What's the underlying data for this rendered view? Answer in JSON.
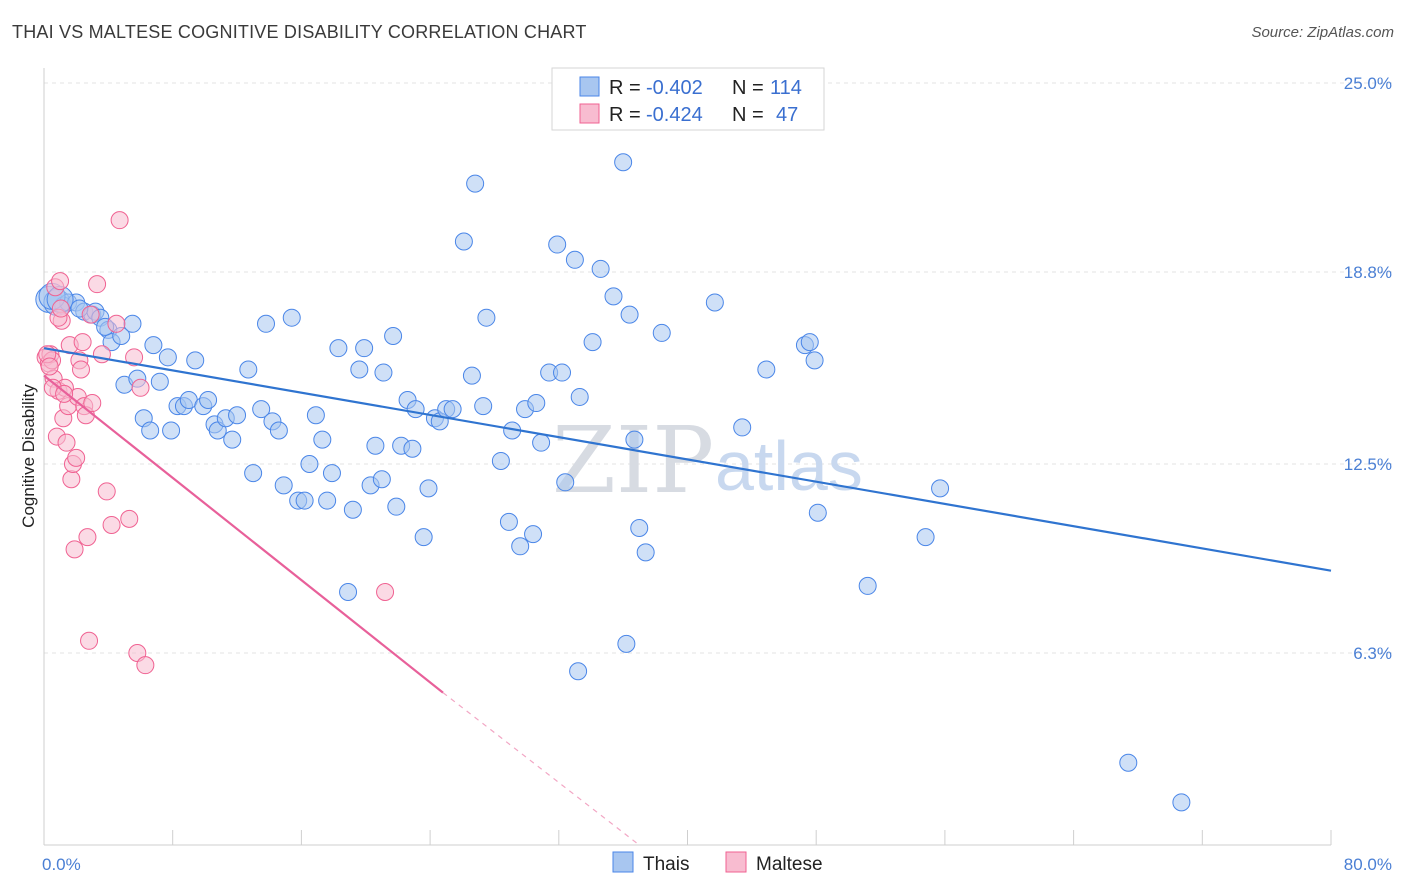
{
  "title": "THAI VS MALTESE COGNITIVE DISABILITY CORRELATION CHART",
  "source": "Source: ZipAtlas.com",
  "watermark": {
    "zip": "ZIP",
    "atlas": "atlas"
  },
  "legend": [
    {
      "r_label": "R = ",
      "r_value": "-0.402",
      "n_label": "N = ",
      "n_value": "114"
    },
    {
      "r_label": "R = ",
      "r_value": "-0.424",
      "n_label": "N = ",
      "n_value": "47"
    }
  ],
  "colors": {
    "thais": "#4a86e8",
    "maltese": "#f06292",
    "thais_fill": "#a8c6f0",
    "maltese_fill": "#f8bcd0",
    "axis_label": "#4a7fd4"
  },
  "chart_data": {
    "type": "scatter",
    "ylabel": "Cognitive Disability",
    "xlim": [
      0,
      80
    ],
    "ylim": [
      0,
      25
    ],
    "x_tick_labels": [
      {
        "value": 0,
        "label": "0.0%"
      },
      {
        "value": 80,
        "label": "80.0%"
      }
    ],
    "y_tick_labels": [
      {
        "value": 25.0,
        "label": "25.0%"
      },
      {
        "value": 18.8,
        "label": "18.8%"
      },
      {
        "value": 12.5,
        "label": "12.5%"
      },
      {
        "value": 6.3,
        "label": "6.3%"
      }
    ],
    "series": [
      {
        "name": "Thais",
        "trend": {
          "x": [
            0,
            80
          ],
          "y": [
            16.3,
            9.0
          ]
        },
        "points": [
          [
            0.3,
            17.9
          ],
          [
            0.8,
            17.8
          ],
          [
            1.2,
            17.7
          ],
          [
            1.5,
            17.8
          ],
          [
            2,
            17.8
          ],
          [
            2.5,
            17.5
          ],
          [
            3,
            17.4
          ],
          [
            3.2,
            17.5
          ],
          [
            3.5,
            17.3
          ],
          [
            4,
            16.9
          ],
          [
            4.2,
            16.5
          ],
          [
            4.8,
            16.7
          ],
          [
            5,
            15.1
          ],
          [
            5.5,
            17.1
          ],
          [
            5.8,
            15.3
          ],
          [
            6.2,
            14.0
          ],
          [
            6.6,
            13.6
          ],
          [
            6.8,
            16.4
          ],
          [
            7.2,
            15.2
          ],
          [
            7.7,
            16.0
          ],
          [
            7.9,
            13.6
          ],
          [
            8.3,
            14.4
          ],
          [
            8.7,
            14.4
          ],
          [
            9,
            14.6
          ],
          [
            9.4,
            15.9
          ],
          [
            9.9,
            14.4
          ],
          [
            10.2,
            14.6
          ],
          [
            10.6,
            13.8
          ],
          [
            10.8,
            13.6
          ],
          [
            11.3,
            14.0
          ],
          [
            11.7,
            13.3
          ],
          [
            12.0,
            14.1
          ],
          [
            12.7,
            15.6
          ],
          [
            13.0,
            12.2
          ],
          [
            13.5,
            14.3
          ],
          [
            13.8,
            17.1
          ],
          [
            14.2,
            13.9
          ],
          [
            14.6,
            13.6
          ],
          [
            14.9,
            11.8
          ],
          [
            15.4,
            17.3
          ],
          [
            15.8,
            11.3
          ],
          [
            16.2,
            11.3
          ],
          [
            16.5,
            12.5
          ],
          [
            16.9,
            14.1
          ],
          [
            17.3,
            13.3
          ],
          [
            17.6,
            11.3
          ],
          [
            17.9,
            12.2
          ],
          [
            18.3,
            16.3
          ],
          [
            18.9,
            8.3
          ],
          [
            19.2,
            11.0
          ],
          [
            19.6,
            15.6
          ],
          [
            19.9,
            16.3
          ],
          [
            20.3,
            11.8
          ],
          [
            20.6,
            13.1
          ],
          [
            21.0,
            12.0
          ],
          [
            21.1,
            15.5
          ],
          [
            21.7,
            16.7
          ],
          [
            21.9,
            11.1
          ],
          [
            22.2,
            13.1
          ],
          [
            22.6,
            14.6
          ],
          [
            22.9,
            13.0
          ],
          [
            23.1,
            14.3
          ],
          [
            23.6,
            10.1
          ],
          [
            23.9,
            11.7
          ],
          [
            24.3,
            14.0
          ],
          [
            24.6,
            13.9
          ],
          [
            25,
            14.3
          ],
          [
            25.4,
            14.3
          ],
          [
            26.1,
            19.8
          ],
          [
            26.6,
            15.4
          ],
          [
            26.8,
            21.7
          ],
          [
            27.3,
            14.4
          ],
          [
            27.5,
            17.3
          ],
          [
            28.4,
            12.6
          ],
          [
            28.9,
            10.6
          ],
          [
            29.1,
            13.6
          ],
          [
            29.6,
            9.8
          ],
          [
            29.9,
            14.3
          ],
          [
            30.4,
            10.2
          ],
          [
            30.6,
            14.5
          ],
          [
            30.9,
            13.2
          ],
          [
            31.4,
            15.5
          ],
          [
            31.9,
            19.7
          ],
          [
            32.2,
            15.5
          ],
          [
            32.4,
            11.9
          ],
          [
            33.0,
            19.2
          ],
          [
            33.3,
            14.7
          ],
          [
            34.1,
            16.5
          ],
          [
            34.6,
            18.9
          ],
          [
            35.4,
            18.0
          ],
          [
            36.0,
            22.4
          ],
          [
            36.2,
            6.6
          ],
          [
            36.4,
            17.4
          ],
          [
            36.7,
            13.3
          ],
          [
            37.0,
            10.4
          ],
          [
            37.4,
            9.6
          ],
          [
            38.4,
            16.8
          ],
          [
            41.7,
            17.8
          ],
          [
            43.4,
            13.7
          ],
          [
            44.9,
            15.6
          ],
          [
            47.3,
            16.4
          ],
          [
            47.6,
            16.5
          ],
          [
            47.9,
            15.9
          ],
          [
            48.1,
            10.9
          ],
          [
            51.2,
            8.5
          ],
          [
            54.8,
            10.1
          ],
          [
            55.7,
            11.7
          ],
          [
            67.4,
            2.7
          ],
          [
            70.7,
            1.4
          ],
          [
            33.2,
            5.7
          ],
          [
            0.5,
            18.0
          ],
          [
            1.0,
            17.9
          ],
          [
            2.2,
            17.6
          ],
          [
            3.8,
            17.0
          ]
        ]
      },
      {
        "name": "Maltese",
        "trend": {
          "x": [
            0,
            24.8
          ],
          "y": [
            15.4,
            5.0
          ]
        },
        "trend_dashed": {
          "x": [
            24.8,
            37.0
          ],
          "y": [
            5.0,
            0
          ]
        },
        "points": [
          [
            0.1,
            16.0
          ],
          [
            0.3,
            15.8
          ],
          [
            0.4,
            16.1
          ],
          [
            0.5,
            15.9
          ],
          [
            0.6,
            15.3
          ],
          [
            0.7,
            18.3
          ],
          [
            0.8,
            13.4
          ],
          [
            0.9,
            14.9
          ],
          [
            1.0,
            18.5
          ],
          [
            1.1,
            17.2
          ],
          [
            1.2,
            14.0
          ],
          [
            1.3,
            15.0
          ],
          [
            1.4,
            13.2
          ],
          [
            1.5,
            14.4
          ],
          [
            1.6,
            16.4
          ],
          [
            1.7,
            12.0
          ],
          [
            1.8,
            12.5
          ],
          [
            1.9,
            9.7
          ],
          [
            2.0,
            12.7
          ],
          [
            2.1,
            14.7
          ],
          [
            2.2,
            15.9
          ],
          [
            2.4,
            16.5
          ],
          [
            2.5,
            14.4
          ],
          [
            2.6,
            14.1
          ],
          [
            2.7,
            10.1
          ],
          [
            2.8,
            6.7
          ],
          [
            2.9,
            17.4
          ],
          [
            3.0,
            14.5
          ],
          [
            3.3,
            18.4
          ],
          [
            3.6,
            16.1
          ],
          [
            3.9,
            11.6
          ],
          [
            4.2,
            10.5
          ],
          [
            4.5,
            17.1
          ],
          [
            4.7,
            20.5
          ],
          [
            5.3,
            10.7
          ],
          [
            5.6,
            16.0
          ],
          [
            5.8,
            6.3
          ],
          [
            6.0,
            15.0
          ],
          [
            6.3,
            5.9
          ],
          [
            21.2,
            8.3
          ],
          [
            0.2,
            16.1
          ],
          [
            0.35,
            15.7
          ],
          [
            0.55,
            15.0
          ],
          [
            0.9,
            17.3
          ],
          [
            1.25,
            14.8
          ],
          [
            2.3,
            15.6
          ],
          [
            1.05,
            17.6
          ]
        ]
      }
    ]
  },
  "bottom_legend": [
    {
      "label": "Thais"
    },
    {
      "label": "Maltese"
    }
  ]
}
